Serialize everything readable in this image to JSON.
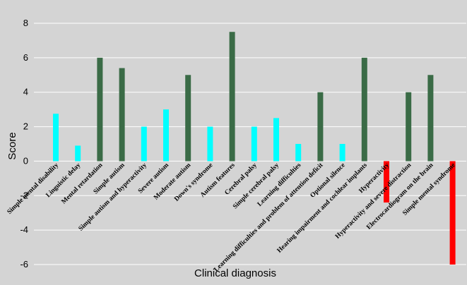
{
  "chart_data": {
    "type": "bar",
    "title": "",
    "xlabel": "Clinical diagnosis",
    "ylabel": "Score",
    "ylim": [
      -6,
      8
    ],
    "yticks": [
      -6,
      -4,
      -2,
      0,
      2,
      4,
      6,
      8
    ],
    "grid": true,
    "colors": {
      "cyan": "#00ffff",
      "green": "#3a6b46",
      "red": "#ff0000"
    },
    "categories": [
      "Simple mental disability",
      "Linguistic delay",
      "Mental retardation",
      "Simple autism",
      "Simple autism and hyperactivity",
      "Severe autism",
      "Moderate autism",
      "Down's syndrome",
      "Autism features",
      "Cerebral palsy",
      "Simple cerebral palsy",
      "Learning difficulties",
      "Learning difficulties and problem of attention deficit",
      "Optional silence",
      "Hearing impairment and cochlear implants",
      "Hyperactivity",
      "Hyperactivity and severe distraction",
      "Electrocardiogram on the brain",
      "Simple mental syndrome"
    ],
    "values": [
      2.75,
      0.9,
      6.0,
      5.4,
      2.0,
      3.0,
      5.0,
      2.0,
      7.5,
      2.0,
      2.5,
      1.0,
      4.0,
      1.0,
      6.0,
      -2.4,
      4.0,
      5.0,
      -6.0
    ],
    "bar_colors": [
      "cyan",
      "cyan",
      "green",
      "green",
      "cyan",
      "cyan",
      "green",
      "cyan",
      "green",
      "cyan",
      "cyan",
      "cyan",
      "green",
      "cyan",
      "green",
      "red",
      "green",
      "green",
      "red"
    ]
  }
}
